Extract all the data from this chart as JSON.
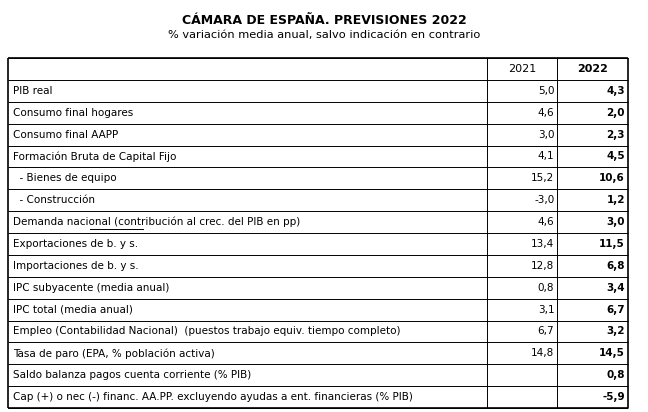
{
  "title": "CÁMARA DE ESPAÑA. PREVISIONES 2022",
  "subtitle": "% variación media anual, salvo indicación en contrario",
  "rows": [
    {
      "label": "PIB real",
      "v2021": "5,0",
      "v2022": "4,3"
    },
    {
      "label": "Consumo final hogares",
      "v2021": "4,6",
      "v2022": "2,0"
    },
    {
      "label": "Consumo final AAPP",
      "v2021": "3,0",
      "v2022": "2,3"
    },
    {
      "label": "Formación Bruta de Capital Fijo",
      "v2021": "4,1",
      "v2022": "4,5"
    },
    {
      "label": "  - Bienes de equipo",
      "v2021": "15,2",
      "v2022": "10,6"
    },
    {
      "label": "  - Construcción",
      "v2021": "-3,0",
      "v2022": "1,2"
    },
    {
      "label": "Demanda nacional (contribución al crec. del PIB en pp)",
      "v2021": "4,6",
      "v2022": "3,0",
      "underline_word": true
    },
    {
      "label": "Exportaciones de b. y s.",
      "v2021": "13,4",
      "v2022": "11,5"
    },
    {
      "label": "Importaciones de b. y s.",
      "v2021": "12,8",
      "v2022": "6,8"
    },
    {
      "label": "IPC subyacente (media anual)",
      "v2021": "0,8",
      "v2022": "3,4"
    },
    {
      "label": "IPC total (media anual)",
      "v2021": "3,1",
      "v2022": "6,7"
    },
    {
      "label": "Empleo (Contabilidad Nacional)  (puestos trabajo equiv. tiempo completo)",
      "v2021": "6,7",
      "v2022": "3,2"
    },
    {
      "label": "Tasa de paro (EPA, % población activa)",
      "v2021": "14,8",
      "v2022": "14,5"
    },
    {
      "label": "Saldo balanza pagos cuenta corriente (% PIB)",
      "v2021": "",
      "v2022": "0,8"
    },
    {
      "label": "Cap (+) o nec (-) financ. AA.PP. excluyendo ayudas a ent. financieras (% PIB)",
      "v2021": "",
      "v2022": "-5,9"
    }
  ],
  "bg_color": "#ffffff",
  "line_color": "#000000",
  "text_color": "#000000",
  "title_fontsize": 9.0,
  "subtitle_fontsize": 8.2,
  "table_fontsize": 7.5
}
